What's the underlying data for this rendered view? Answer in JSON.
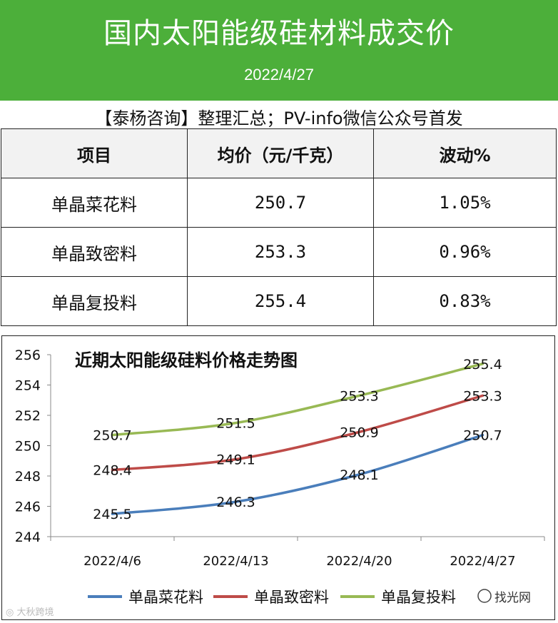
{
  "header": {
    "title": "国内太阳能级硅材料成交价",
    "date": "2022/4/27"
  },
  "source_line": "【泰杨咨询】整理汇总；PV-info微信公众号首发",
  "table": {
    "headers": [
      "项目",
      "均价（元/千克）",
      "波动%"
    ],
    "rows": [
      {
        "item": "单晶菜花料",
        "price": "250.7",
        "change": "1.05%"
      },
      {
        "item": "单晶致密料",
        "price": "253.3",
        "change": "0.96%"
      },
      {
        "item": "单晶复投料",
        "price": "255.4",
        "change": "0.83%"
      }
    ]
  },
  "chart_data": {
    "type": "line",
    "title": "近期太阳能级硅料价格走势图",
    "categories": [
      "2022/4/6",
      "2022/4/13",
      "2022/4/20",
      "2022/4/27"
    ],
    "series": [
      {
        "name": "单晶菜花料",
        "values": [
          245.5,
          246.3,
          248.1,
          250.7
        ],
        "color": "#4a7ebb"
      },
      {
        "name": "单晶致密料",
        "values": [
          248.4,
          249.1,
          250.9,
          253.3
        ],
        "color": "#be4b48"
      },
      {
        "name": "单晶复投料",
        "values": [
          250.7,
          251.5,
          253.3,
          255.4
        ],
        "color": "#98b954"
      }
    ],
    "ylim": [
      244,
      256
    ],
    "yticks": [
      "244",
      "246",
      "248",
      "250",
      "252",
      "254",
      "256"
    ],
    "grid": false,
    "legend_position": "bottom"
  },
  "watermarks": {
    "left": "大秋跨境",
    "right": "找光网"
  }
}
